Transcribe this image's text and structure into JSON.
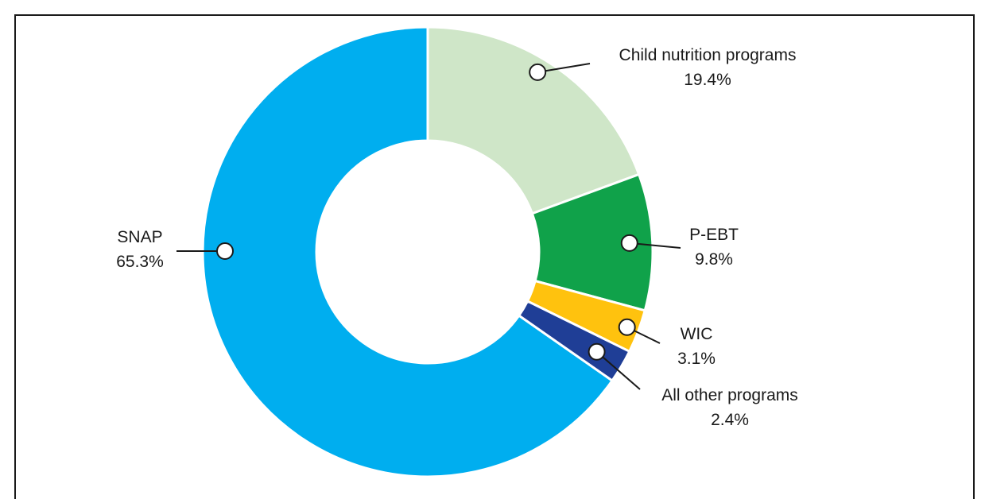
{
  "chart_data": {
    "type": "pie",
    "variant": "donut",
    "title": "",
    "slices": [
      {
        "label": "SNAP",
        "value": 65.3,
        "value_label": "65.3%",
        "color": "#00AEEF"
      },
      {
        "label": "Child nutrition programs",
        "value": 19.4,
        "value_label": "19.4%",
        "color": "#CFE6C8"
      },
      {
        "label": "P-EBT",
        "value": 9.8,
        "value_label": "9.8%",
        "color": "#10A24A"
      },
      {
        "label": "WIC",
        "value": 3.1,
        "value_label": "3.1%",
        "color": "#FFC20E"
      },
      {
        "label": "All other programs",
        "value": 2.4,
        "value_label": "2.4%",
        "color": "#1F3E96"
      }
    ]
  }
}
